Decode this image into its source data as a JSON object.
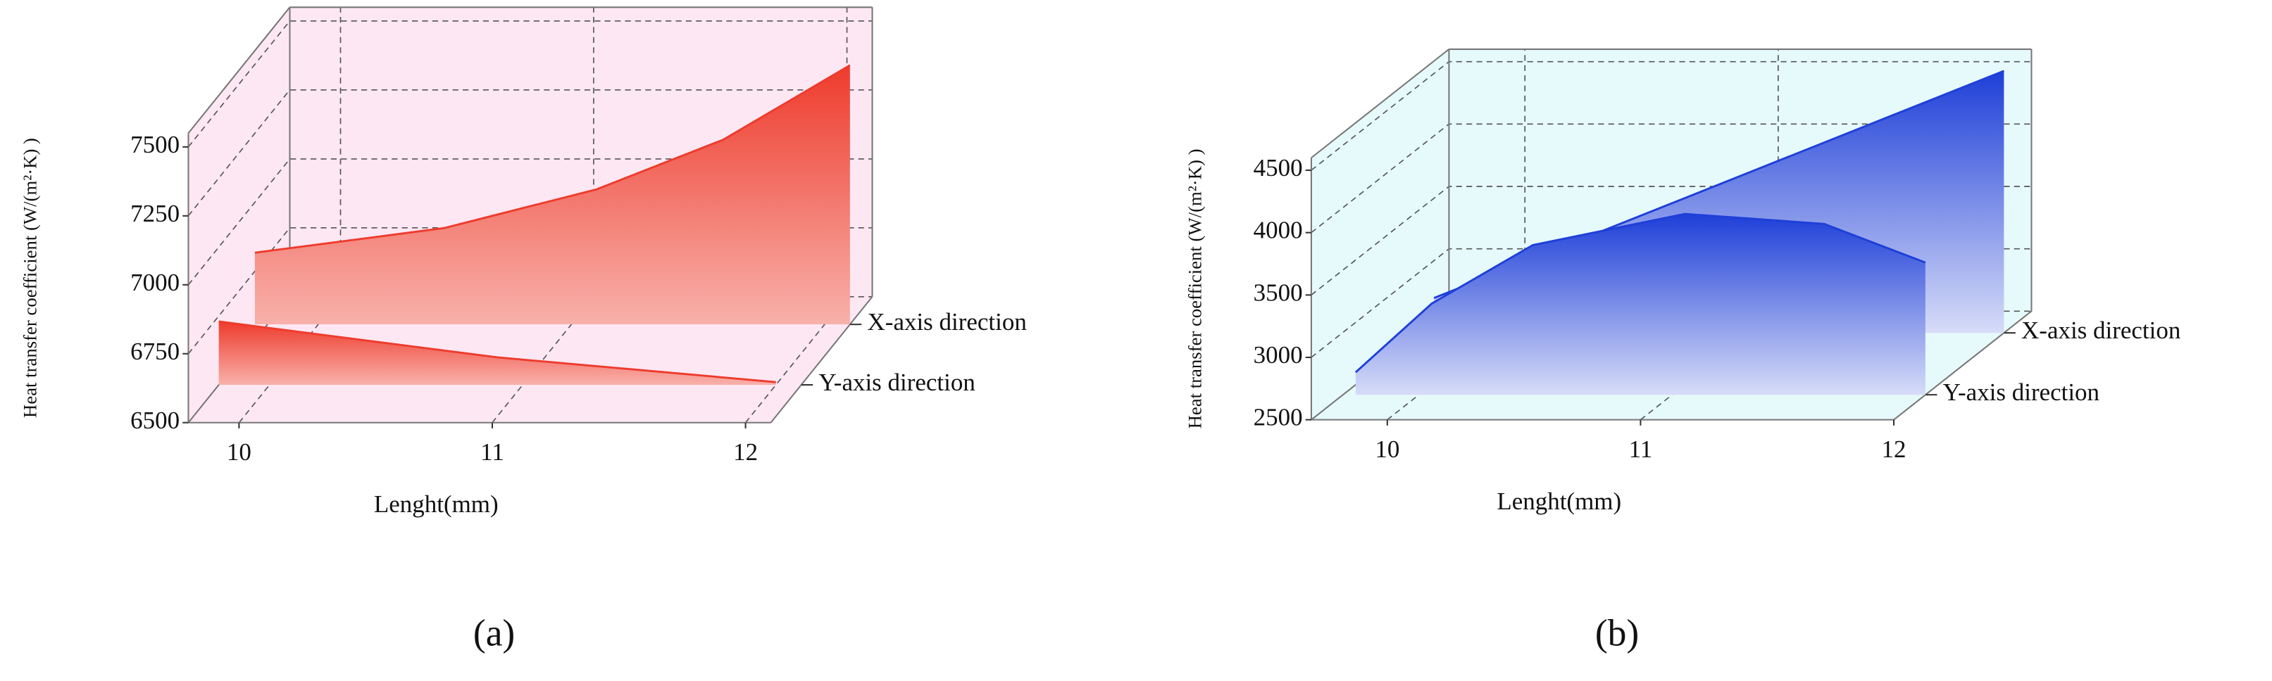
{
  "chart_data": [
    {
      "type": "area3d",
      "caption": "(a)",
      "y_label": "Heat transfer coefficient (W/(m²·K) )",
      "x_label": "Lenght(mm)",
      "xlim": [
        9.8,
        12.1
      ],
      "xticks": [
        10,
        11,
        12
      ],
      "ylim": [
        6500,
        7550
      ],
      "yticks": [
        6500,
        6750,
        7000,
        7250,
        7500
      ],
      "grid": true,
      "wall_color": "#fbe3f1",
      "series": [
        {
          "name": "X-axis direction",
          "color": "#ee3b2c",
          "x": [
            9.75,
            10.5,
            11.1,
            11.6,
            12.1
          ],
          "values": [
            6760,
            6850,
            6990,
            7170,
            7440
          ]
        },
        {
          "name": "Y-axis direction",
          "color": "#ee3b2c",
          "x": [
            9.8,
            10.9,
            12.0
          ],
          "values": [
            6730,
            6600,
            6510
          ]
        }
      ]
    },
    {
      "type": "area3d",
      "caption": "(b)",
      "y_label": "Heat transfer coefficient (W/(m²·K) )",
      "x_label": "Lenght(mm)",
      "xlim": [
        9.7,
        12.0
      ],
      "xticks": [
        10,
        11,
        12
      ],
      "ylim": [
        2500,
        4600
      ],
      "yticks": [
        2500,
        3000,
        3500,
        4000,
        4500
      ],
      "grid": true,
      "wall_color": "#e2f9fc",
      "series": [
        {
          "name": "X-axis direction",
          "color": "#1e3fd8",
          "x": [
            9.75,
            12.0
          ],
          "values": [
            2780,
            4600
          ]
        },
        {
          "name": "Y-axis direction",
          "color": "#1e3fd8",
          "x": [
            9.75,
            10.05,
            10.45,
            11.05,
            11.6,
            12.0
          ],
          "values": [
            2680,
            3230,
            3700,
            3950,
            3870,
            3560
          ]
        }
      ]
    }
  ]
}
